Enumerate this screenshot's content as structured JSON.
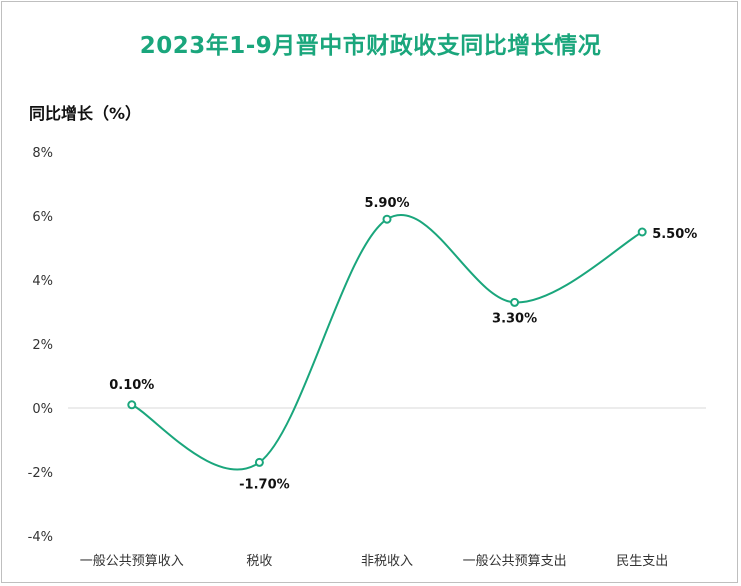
{
  "chart_data": {
    "type": "line",
    "title": "2023年1-9月晋中市财政收支同比增长情况",
    "ylabel": "同比增长（%）",
    "xlabel": "",
    "categories": [
      "一般公共预算收入",
      "税收",
      "非税收入",
      "一般公共预算支出",
      "民生支出"
    ],
    "series": [
      {
        "values": [
          0.1,
          -1.7,
          5.9,
          3.3,
          5.5
        ],
        "labels": [
          "0.10%",
          "-1.70%",
          "5.90%",
          "3.30%",
          "5.50%"
        ]
      }
    ],
    "ylim": [
      -4,
      8
    ],
    "yticks": [
      8,
      6,
      4,
      2,
      0,
      -2,
      -4
    ],
    "ytick_labels": [
      "8%",
      "6%",
      "4%",
      "2%",
      "0%",
      "-2%",
      "-4%"
    ],
    "grid": false,
    "smooth": true,
    "colors": {
      "line": "#1aa67c",
      "title": "#1aa67c",
      "zero_line": "#d9d9d9"
    }
  }
}
